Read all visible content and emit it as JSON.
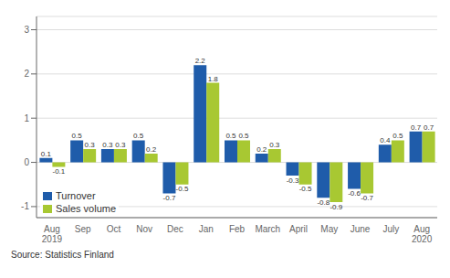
{
  "chart_data": {
    "type": "bar",
    "categories": [
      "Aug\n2019",
      "Sep",
      "Oct",
      "Nov",
      "Dec",
      "Jan",
      "Feb",
      "March",
      "April",
      "May",
      "June",
      "July",
      "Aug\n2020"
    ],
    "series": [
      {
        "name": "Turnover",
        "color": "#1f5caa",
        "values": [
          0.1,
          0.5,
          0.3,
          0.5,
          -0.7,
          2.2,
          0.5,
          0.2,
          -0.3,
          -0.8,
          -0.6,
          0.4,
          0.7
        ]
      },
      {
        "name": "Sales volume",
        "color": "#a8c832",
        "values": [
          -0.1,
          0.3,
          0.3,
          0.2,
          -0.5,
          1.8,
          0.5,
          0.3,
          -0.5,
          -0.9,
          -0.7,
          0.5,
          0.7
        ]
      }
    ],
    "ylim": [
      -1.25,
      3.3
    ],
    "yticks": [
      -1,
      0,
      1,
      2,
      3
    ],
    "grid": true,
    "legend": "lower left",
    "data_labels": true,
    "annotations": [
      "Source: Statistics Finland"
    ]
  }
}
